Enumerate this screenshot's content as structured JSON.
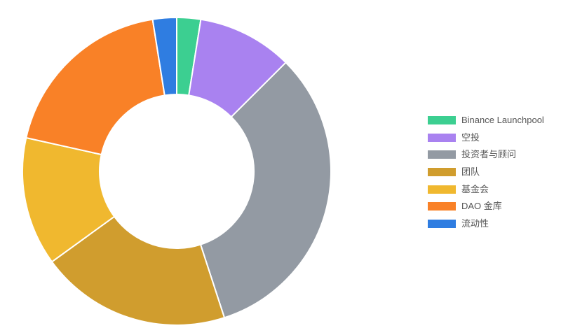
{
  "chart_data": {
    "type": "pie",
    "donut": true,
    "title": "",
    "legend_position": "right",
    "categories": [
      "Binance Launchpool",
      "空投",
      "投资者与顾问",
      "团队",
      "基金会",
      "DAO 金库",
      "流动性"
    ],
    "values": [
      2.5,
      10,
      32.5,
      20,
      13.5,
      19,
      2.5
    ],
    "colors": [
      "#3ccf91",
      "#a982f0",
      "#939aa3",
      "#d09d2e",
      "#f0b82f",
      "#f98127",
      "#2f7de1"
    ]
  }
}
